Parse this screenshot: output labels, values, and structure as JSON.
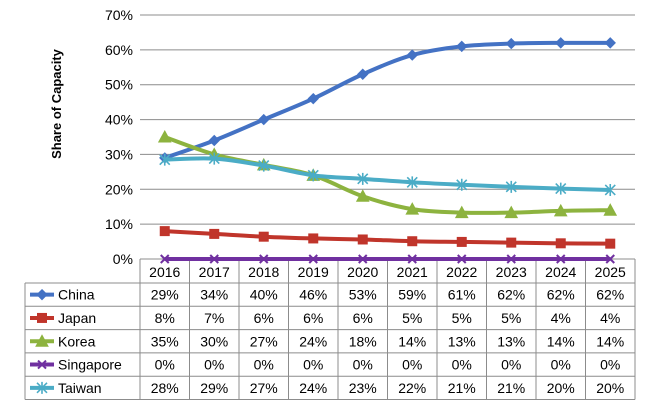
{
  "chart_data": {
    "type": "line",
    "ylabel": "Share of Capacity",
    "xlabel": "",
    "ylim": [
      0,
      70
    ],
    "y_ticks": [
      "0%",
      "10%",
      "20%",
      "30%",
      "40%",
      "50%",
      "60%",
      "70%"
    ],
    "grid": "horizontal",
    "legend": "data-table-left",
    "categories": [
      "2016",
      "2017",
      "2018",
      "2019",
      "2020",
      "2021",
      "2022",
      "2023",
      "2024",
      "2025"
    ],
    "series": [
      {
        "name": "China",
        "values": [
          29,
          34,
          40,
          46,
          53,
          58.5,
          61,
          61.8,
          62,
          62
        ],
        "table": [
          "29%",
          "34%",
          "40%",
          "46%",
          "53%",
          "59%",
          "61%",
          "62%",
          "62%",
          "62%"
        ],
        "color": "#4472C4",
        "marker": "diamond"
      },
      {
        "name": "Japan",
        "values": [
          8,
          7.2,
          6.4,
          5.9,
          5.6,
          5.1,
          4.9,
          4.7,
          4.5,
          4.4
        ],
        "table": [
          "8%",
          "7%",
          "6%",
          "6%",
          "6%",
          "5%",
          "5%",
          "5%",
          "4%",
          "4%"
        ],
        "color": "#C0352B",
        "marker": "square"
      },
      {
        "name": "Korea",
        "values": [
          35,
          30,
          27,
          24,
          18,
          14.3,
          13.3,
          13.3,
          13.8,
          14
        ],
        "table": [
          "35%",
          "30%",
          "27%",
          "24%",
          "18%",
          "14%",
          "13%",
          "13%",
          "14%",
          "14%"
        ],
        "color": "#8DB33F",
        "marker": "triangle"
      },
      {
        "name": "Singapore",
        "values": [
          0,
          0,
          0,
          0,
          0,
          0,
          0,
          0,
          0,
          0
        ],
        "table": [
          "0%",
          "0%",
          "0%",
          "0%",
          "0%",
          "0%",
          "0%",
          "0%",
          "0%",
          "0%"
        ],
        "color": "#7030A0",
        "marker": "x"
      },
      {
        "name": "Taiwan",
        "values": [
          28.5,
          28.8,
          26.8,
          24,
          23,
          22,
          21.3,
          20.7,
          20.2,
          19.8
        ],
        "table": [
          "28%",
          "29%",
          "27%",
          "24%",
          "23%",
          "22%",
          "21%",
          "21%",
          "20%",
          "20%"
        ],
        "color": "#4BACC6",
        "marker": "star"
      }
    ]
  }
}
